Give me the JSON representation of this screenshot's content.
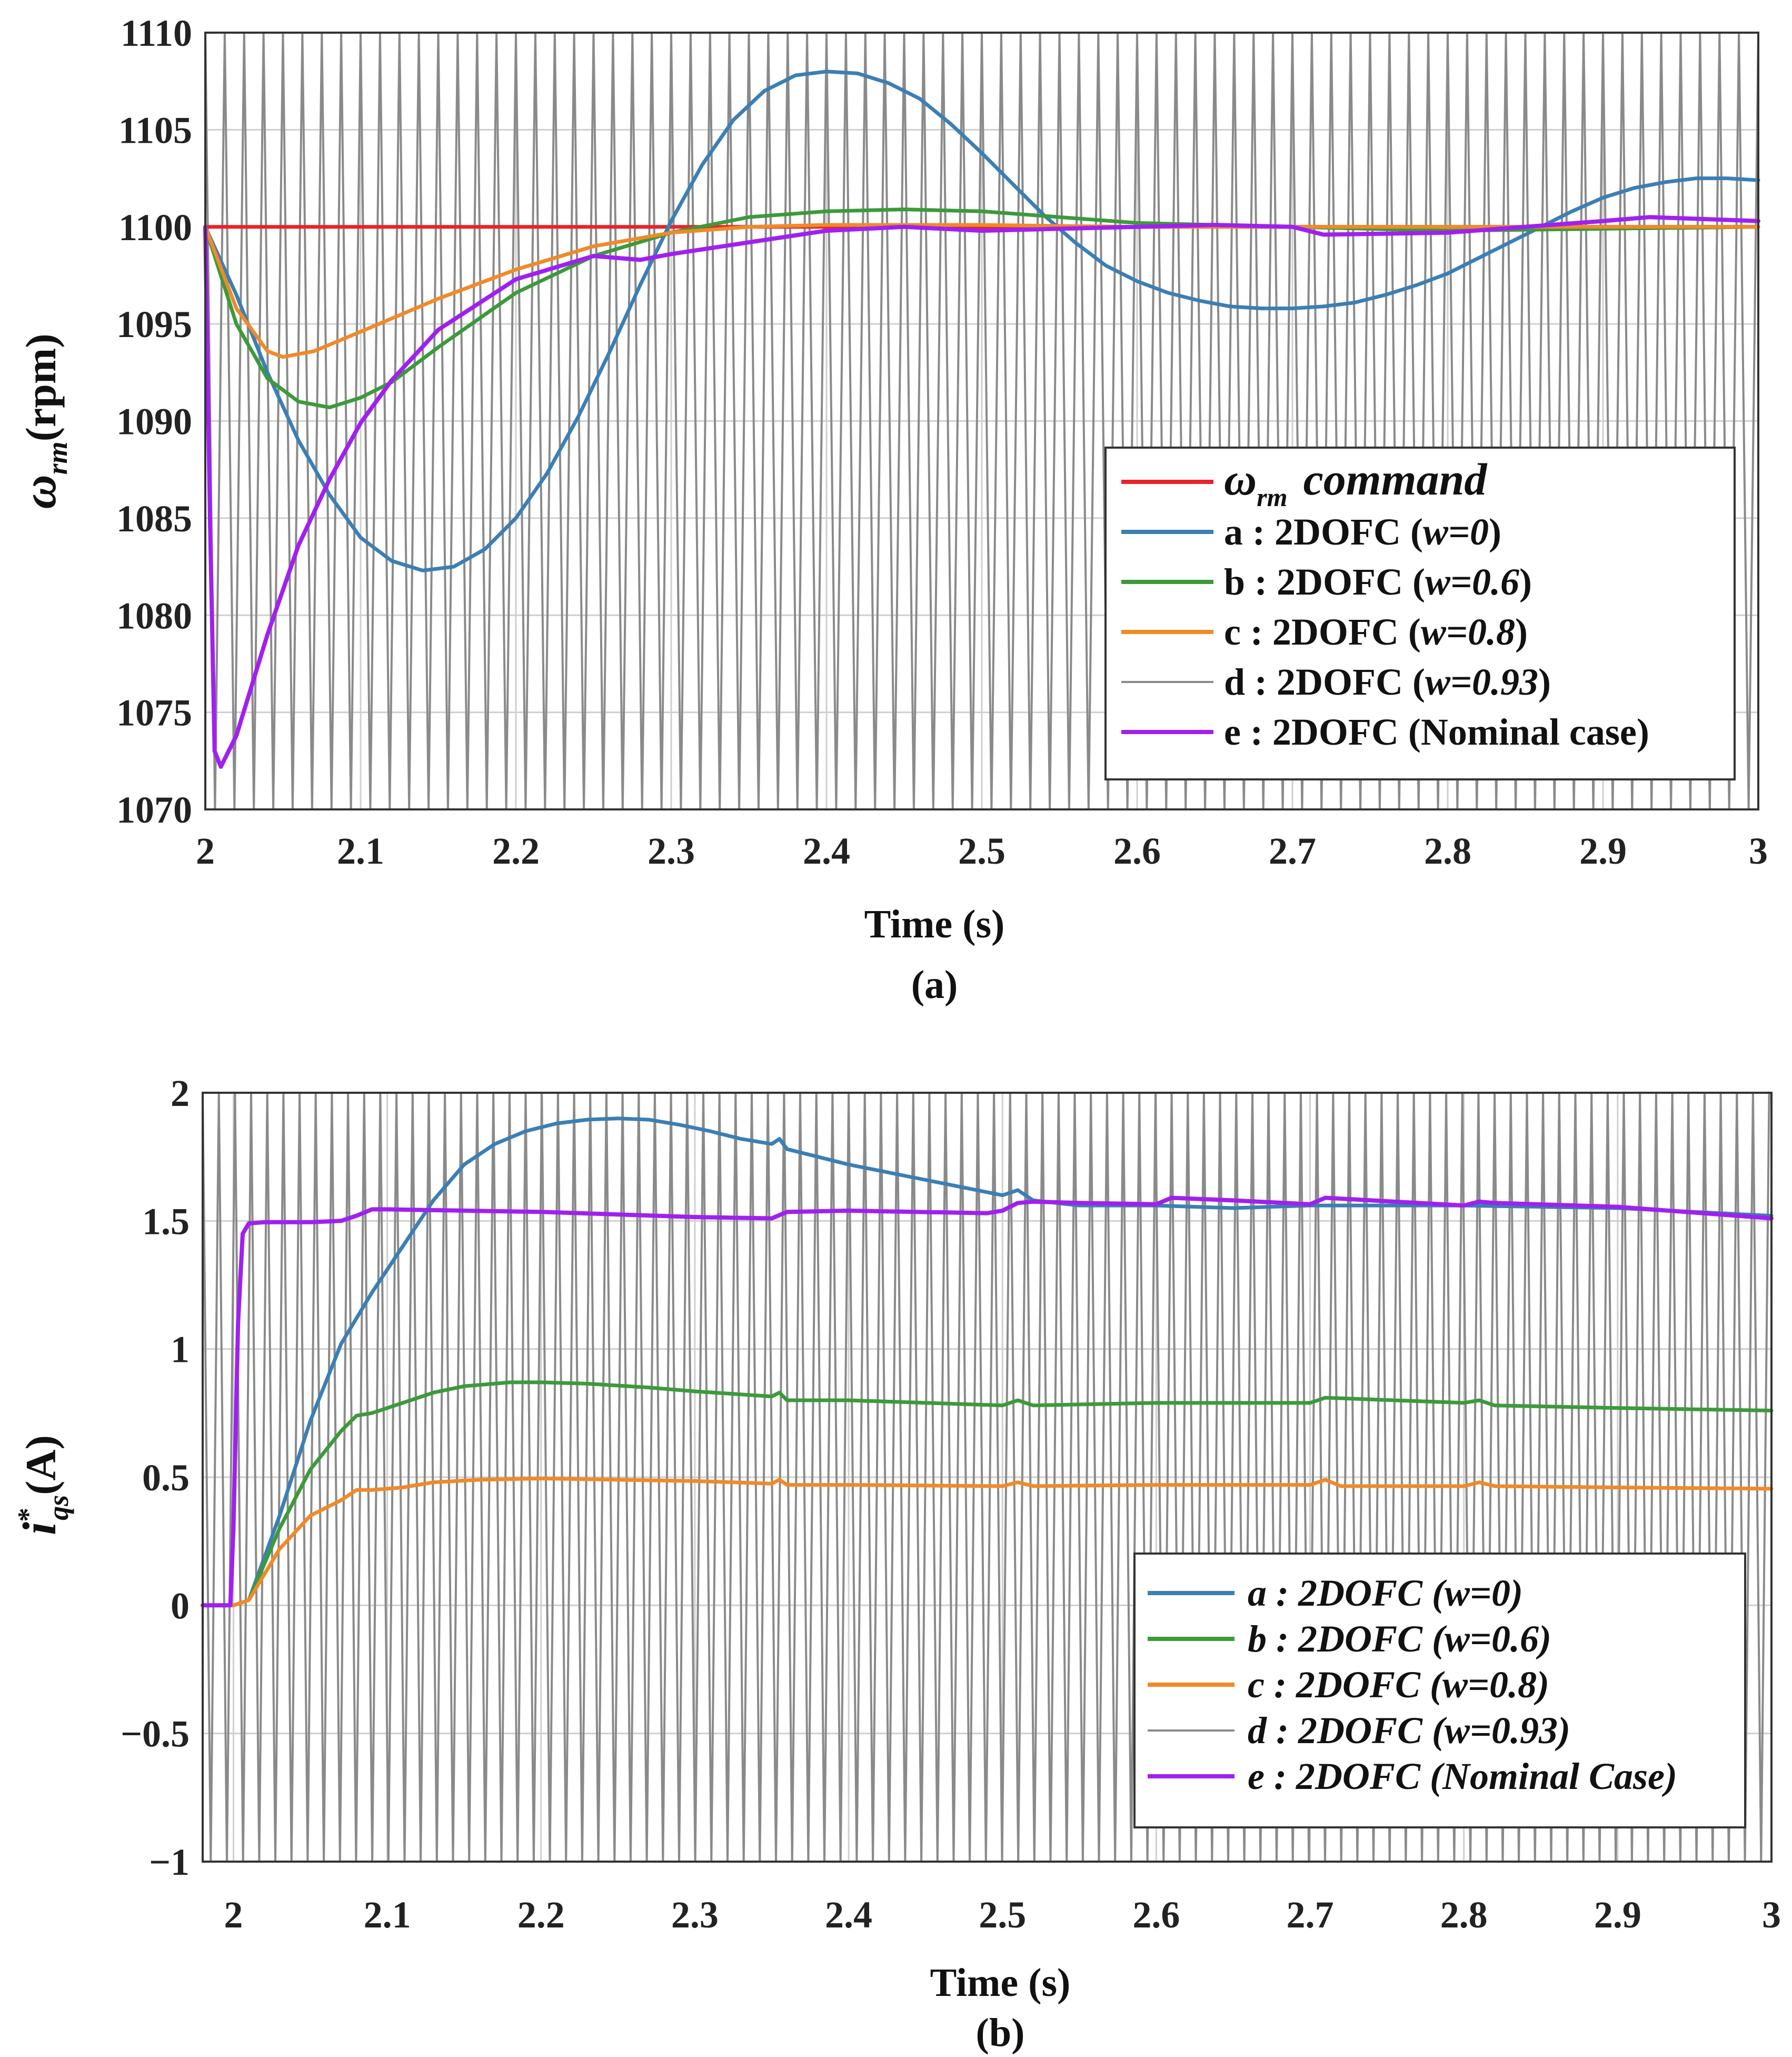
{
  "chart_data": [
    {
      "id": "a",
      "type": "line",
      "caption": "(a)",
      "xlabel": "Time (s)",
      "ylabel": "ω",
      "ylabel_sub": "rm",
      "ylabel_unit": "(rpm)",
      "xlim": [
        2,
        3
      ],
      "ylim": [
        1070,
        1110
      ],
      "xticks": [
        "2",
        "2.1",
        "2.2",
        "2.3",
        "2.4",
        "2.5",
        "2.6",
        "2.7",
        "2.8",
        "2.9",
        "3"
      ],
      "yticks": [
        "1110",
        "1105",
        "1100",
        "1095",
        "1090",
        "1085",
        "1080",
        "1075",
        "1070"
      ],
      "legend_position": "bottom-right",
      "legend": [
        {
          "key": "cmd",
          "prefix": "ω",
          "sub": "rm",
          "label": "command",
          "color": "#e8242a"
        },
        {
          "key": "a",
          "prefix": "",
          "label": "a : 2DOFC (",
          "italic": "w=0",
          "suffix": ")",
          "color": "#3b7fb4"
        },
        {
          "key": "b",
          "prefix": "",
          "label": "b : 2DOFC (",
          "italic": "w=0.6",
          "suffix": ")",
          "color": "#3c9a3a"
        },
        {
          "key": "c",
          "prefix": "",
          "label": "c : 2DOFC (",
          "italic": "w=0.8",
          "suffix": ")",
          "color": "#f08a28"
        },
        {
          "key": "d",
          "prefix": "",
          "label": "d : 2DOFC (",
          "italic": "w=0.93",
          "suffix": ")",
          "color": "#8a8a8a"
        },
        {
          "key": "e",
          "prefix": "",
          "label": "e : 2DOFC (Nominal case)",
          "italic": "",
          "suffix": "",
          "color": "#a020f0"
        }
      ],
      "d_oscillation": {
        "start": 2.0,
        "period": 0.0125,
        "amplitude_from": 1070,
        "amplitude_to": 1110
      },
      "series": [
        {
          "name": "command",
          "color": "#e8242a",
          "width": 7,
          "x": [
            2.0,
            3.0
          ],
          "y": [
            1100,
            1100
          ]
        },
        {
          "name": "a : 2DOFC (w=0)",
          "color": "#3b7fb4",
          "width": 7,
          "x": [
            2.0,
            2.02,
            2.04,
            2.06,
            2.08,
            2.1,
            2.12,
            2.14,
            2.16,
            2.18,
            2.2,
            2.22,
            2.24,
            2.26,
            2.28,
            2.3,
            2.32,
            2.34,
            2.36,
            2.38,
            2.4,
            2.42,
            2.44,
            2.46,
            2.48,
            2.5,
            2.52,
            2.54,
            2.56,
            2.58,
            2.6,
            2.62,
            2.64,
            2.66,
            2.68,
            2.7,
            2.72,
            2.74,
            2.76,
            2.78,
            2.8,
            2.82,
            2.84,
            2.86,
            2.88,
            2.9,
            2.92,
            2.94,
            2.96,
            2.98,
            3.0
          ],
          "y": [
            1100,
            1096.5,
            1092.5,
            1089.0,
            1086.2,
            1084.0,
            1082.8,
            1082.3,
            1082.5,
            1083.4,
            1085.0,
            1087.3,
            1090.2,
            1093.5,
            1097.0,
            1100.3,
            1103.2,
            1105.5,
            1107.0,
            1107.8,
            1108.0,
            1107.9,
            1107.4,
            1106.6,
            1105.3,
            1103.8,
            1102.2,
            1100.6,
            1099.2,
            1098.0,
            1097.2,
            1096.6,
            1096.2,
            1095.9,
            1095.8,
            1095.8,
            1095.9,
            1096.1,
            1096.5,
            1097.0,
            1097.6,
            1098.4,
            1099.2,
            1100.0,
            1100.8,
            1101.5,
            1102.0,
            1102.3,
            1102.5,
            1102.5,
            1102.4
          ]
        },
        {
          "name": "b : 2DOFC (w=0.6)",
          "color": "#3c9a3a",
          "width": 7,
          "x": [
            2.0,
            2.02,
            2.04,
            2.06,
            2.08,
            2.1,
            2.12,
            2.15,
            2.2,
            2.25,
            2.3,
            2.35,
            2.4,
            2.45,
            2.5,
            2.55,
            2.6,
            2.7,
            2.8,
            2.9,
            3.0
          ],
          "y": [
            1100,
            1095.0,
            1092.2,
            1091.0,
            1090.7,
            1091.2,
            1092.0,
            1093.8,
            1096.6,
            1098.5,
            1099.7,
            1100.5,
            1100.8,
            1100.9,
            1100.8,
            1100.5,
            1100.2,
            1100.0,
            1099.8,
            1099.9,
            1100.0
          ]
        },
        {
          "name": "c : 2DOFC (w=0.8)",
          "color": "#f08a28",
          "width": 7,
          "x": [
            2.0,
            2.02,
            2.04,
            2.05,
            2.07,
            2.1,
            2.15,
            2.2,
            2.25,
            2.3,
            2.35,
            2.4,
            2.5,
            2.6,
            2.7,
            2.8,
            2.9,
            3.0
          ],
          "y": [
            1100,
            1095.8,
            1093.6,
            1093.3,
            1093.6,
            1094.6,
            1096.3,
            1097.8,
            1099.0,
            1099.7,
            1100.0,
            1100.1,
            1100.1,
            1100.0,
            1100.0,
            1100.0,
            1100.0,
            1100.0
          ]
        },
        {
          "name": "e : 2DOFC (Nominal case)",
          "color": "#a020f0",
          "width": 8,
          "x": [
            2.0,
            2.003,
            2.006,
            2.01,
            2.02,
            2.04,
            2.06,
            2.08,
            2.1,
            2.12,
            2.15,
            2.2,
            2.25,
            2.28,
            2.3,
            2.35,
            2.4,
            2.45,
            2.5,
            2.55,
            2.6,
            2.65,
            2.7,
            2.72,
            2.8,
            2.9,
            2.93,
            3.0
          ],
          "y": [
            1100,
            1085.0,
            1073.0,
            1072.2,
            1073.8,
            1079.0,
            1083.6,
            1087.0,
            1089.9,
            1092.1,
            1094.7,
            1097.3,
            1098.5,
            1098.3,
            1098.6,
            1099.2,
            1099.8,
            1100.0,
            1099.8,
            1099.9,
            1100.0,
            1100.1,
            1100.0,
            1099.6,
            1099.7,
            1100.3,
            1100.5,
            1100.3
          ]
        }
      ]
    },
    {
      "id": "b",
      "type": "line",
      "caption": "(b)",
      "xlabel": "Time (s)",
      "ylabel": "i",
      "ylabel_sup": "*",
      "ylabel_sub": "qs",
      "ylabel_unit": "(A)",
      "xlim": [
        1.98,
        3
      ],
      "ylim": [
        -1,
        2
      ],
      "xticks": [
        "2",
        "2.1",
        "2.2",
        "2.3",
        "2.4",
        "2.5",
        "2.6",
        "2.7",
        "2.8",
        "2.9",
        "3"
      ],
      "yticks": [
        "2",
        "1.5",
        "1",
        "0.5",
        "0",
        "−0.5",
        "−1"
      ],
      "legend_position": "bottom-right",
      "legend": [
        {
          "key": "a",
          "label": "a : 2DOFC (w=0)",
          "color": "#3b7fb4"
        },
        {
          "key": "b",
          "label": "b : 2DOFC (w=0.6)",
          "color": "#3c9a3a"
        },
        {
          "key": "c",
          "label": "c : 2DOFC (w=0.8)",
          "color": "#f08a28"
        },
        {
          "key": "d",
          "label": "d : 2DOFC (w=0.93)",
          "color": "#8a8a8a"
        },
        {
          "key": "e",
          "label": "e : 2DOFC (Nominal Case)",
          "color": "#a020f0"
        }
      ],
      "d_oscillation": {
        "start": 1.98,
        "period": 0.0105,
        "amplitude_from": -1,
        "amplitude_to": 2
      },
      "series": [
        {
          "name": "a : 2DOFC (w=0)",
          "color": "#3b7fb4",
          "width": 7,
          "x": [
            1.98,
            2.0,
            2.01,
            2.03,
            2.05,
            2.07,
            2.09,
            2.11,
            2.13,
            2.15,
            2.17,
            2.19,
            2.21,
            2.23,
            2.25,
            2.27,
            2.29,
            2.31,
            2.33,
            2.35,
            2.355,
            2.36,
            2.4,
            2.45,
            2.5,
            2.51,
            2.52,
            2.55,
            2.6,
            2.65,
            2.7,
            2.8,
            2.9,
            3.0
          ],
          "y": [
            0,
            0,
            0.02,
            0.35,
            0.72,
            1.02,
            1.22,
            1.4,
            1.58,
            1.72,
            1.8,
            1.85,
            1.88,
            1.895,
            1.9,
            1.895,
            1.875,
            1.85,
            1.82,
            1.8,
            1.82,
            1.78,
            1.72,
            1.66,
            1.6,
            1.62,
            1.58,
            1.56,
            1.56,
            1.55,
            1.56,
            1.56,
            1.55,
            1.52
          ]
        },
        {
          "name": "b : 2DOFC (w=0.6)",
          "color": "#3c9a3a",
          "width": 7,
          "x": [
            1.98,
            2.0,
            2.01,
            2.03,
            2.05,
            2.07,
            2.08,
            2.09,
            2.11,
            2.13,
            2.15,
            2.18,
            2.2,
            2.23,
            2.27,
            2.3,
            2.35,
            2.355,
            2.36,
            2.4,
            2.5,
            2.51,
            2.52,
            2.6,
            2.7,
            2.71,
            2.8,
            2.81,
            2.82,
            2.9,
            3.0
          ],
          "y": [
            0,
            0,
            0.02,
            0.3,
            0.53,
            0.68,
            0.74,
            0.75,
            0.79,
            0.83,
            0.855,
            0.87,
            0.87,
            0.865,
            0.85,
            0.835,
            0.815,
            0.83,
            0.8,
            0.8,
            0.78,
            0.8,
            0.78,
            0.79,
            0.79,
            0.81,
            0.79,
            0.8,
            0.78,
            0.77,
            0.76
          ]
        },
        {
          "name": "c : 2DOFC (w=0.8)",
          "color": "#f08a28",
          "width": 7,
          "x": [
            1.98,
            2.0,
            2.01,
            2.03,
            2.05,
            2.07,
            2.08,
            2.09,
            2.11,
            2.13,
            2.16,
            2.2,
            2.25,
            2.3,
            2.35,
            2.355,
            2.36,
            2.4,
            2.5,
            2.51,
            2.52,
            2.6,
            2.7,
            2.71,
            2.72,
            2.8,
            2.81,
            2.82,
            2.9,
            3.0
          ],
          "y": [
            0,
            0,
            0.02,
            0.22,
            0.35,
            0.41,
            0.45,
            0.45,
            0.46,
            0.48,
            0.49,
            0.495,
            0.49,
            0.485,
            0.475,
            0.49,
            0.47,
            0.47,
            0.465,
            0.48,
            0.465,
            0.47,
            0.47,
            0.49,
            0.465,
            0.465,
            0.48,
            0.465,
            0.46,
            0.455
          ]
        },
        {
          "name": "e : 2DOFC (Nominal Case)",
          "color": "#a020f0",
          "width": 8,
          "x": [
            1.98,
            1.998,
            2.0,
            2.003,
            2.006,
            2.01,
            2.02,
            2.05,
            2.07,
            2.08,
            2.09,
            2.1,
            2.2,
            2.3,
            2.35,
            2.36,
            2.4,
            2.49,
            2.5,
            2.51,
            2.52,
            2.55,
            2.6,
            2.61,
            2.65,
            2.7,
            2.71,
            2.8,
            2.81,
            2.82,
            2.9,
            3.0
          ],
          "y": [
            0,
            0,
            0.3,
            1.1,
            1.45,
            1.49,
            1.495,
            1.495,
            1.5,
            1.52,
            1.545,
            1.545,
            1.535,
            1.515,
            1.51,
            1.535,
            1.54,
            1.53,
            1.54,
            1.57,
            1.575,
            1.57,
            1.565,
            1.59,
            1.58,
            1.565,
            1.59,
            1.56,
            1.575,
            1.57,
            1.555,
            1.51
          ]
        }
      ]
    }
  ]
}
